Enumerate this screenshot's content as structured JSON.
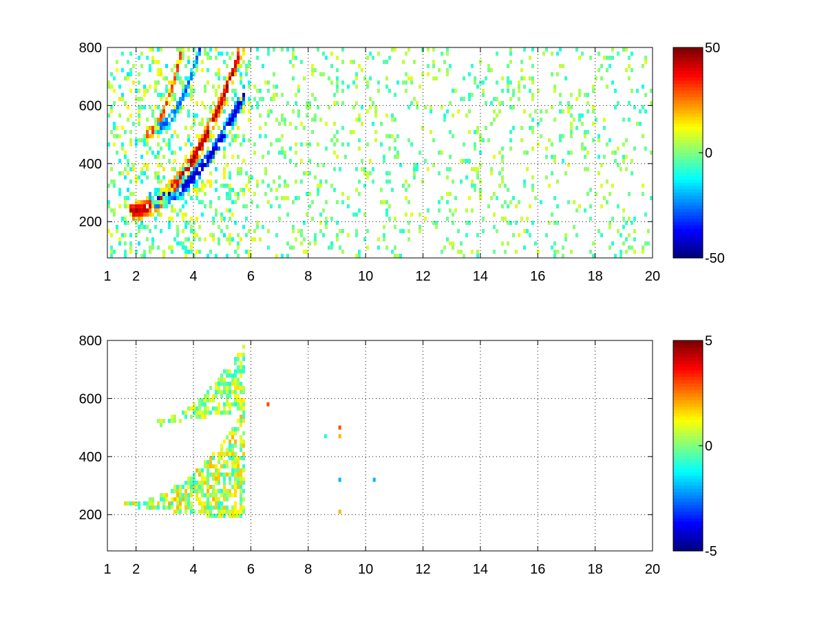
{
  "figure": {
    "background": "#ffffff"
  },
  "colormap": "jet",
  "chart_data": [
    {
      "id": "top",
      "type": "heatmap",
      "title": "",
      "xlabel": "",
      "ylabel": "",
      "xlim": [
        1,
        20
      ],
      "ylim": [
        75,
        800
      ],
      "xticks": [
        1,
        2,
        4,
        6,
        8,
        10,
        12,
        14,
        16,
        18,
        20
      ],
      "xtick_labels": [
        "1",
        "2",
        "4",
        "6",
        "8",
        "10",
        "12",
        "14",
        "16",
        "18",
        "20"
      ],
      "yticks": [
        200,
        400,
        600,
        800
      ],
      "ytick_labels": [
        "200",
        "400",
        "600",
        "800"
      ],
      "grid": true,
      "colorbar": {
        "min": -50,
        "max": 50,
        "ticks": [
          -50,
          0,
          50
        ],
        "tick_labels": [
          "-50",
          "0",
          "50"
        ]
      },
      "features": [
        {
          "kind": "band",
          "x_range": [
            1.8,
            5.8
          ],
          "y_start": 235,
          "curvature": 600,
          "width": 22,
          "value": 45
        },
        {
          "kind": "band",
          "x_range": [
            2.4,
            5.8
          ],
          "y_start": 270,
          "curvature": 380,
          "width": 20,
          "value": -45
        },
        {
          "kind": "band",
          "x_range": [
            2.3,
            4.3
          ],
          "y_start": 500,
          "curvature": 700,
          "width": 14,
          "value": 35
        },
        {
          "kind": "band",
          "x_range": [
            2.6,
            4.8
          ],
          "y_start": 520,
          "curvature": 500,
          "width": 14,
          "value": -30
        },
        {
          "kind": "scatter_noise",
          "x_range": [
            6,
            20
          ],
          "value_range": [
            -10,
            10
          ],
          "density": 0.12
        }
      ]
    },
    {
      "id": "bottom",
      "type": "heatmap",
      "title": "",
      "xlabel": "",
      "ylabel": "",
      "xlim": [
        1,
        20
      ],
      "ylim": [
        75,
        800
      ],
      "xticks": [
        1,
        2,
        4,
        6,
        8,
        10,
        12,
        14,
        16,
        18,
        20
      ],
      "xtick_labels": [
        "1",
        "2",
        "4",
        "6",
        "8",
        "10",
        "12",
        "14",
        "16",
        "18",
        "20"
      ],
      "yticks": [
        200,
        400,
        600,
        800
      ],
      "ytick_labels": [
        "200",
        "400",
        "600",
        "800"
      ],
      "grid": true,
      "colorbar": {
        "min": -5,
        "max": 5,
        "ticks": [
          -5,
          0,
          5
        ],
        "tick_labels": [
          "-5",
          "0",
          "5"
        ]
      },
      "features": [
        {
          "kind": "region",
          "x_range": [
            1.6,
            5.8
          ],
          "y_lower": [
            230,
            180
          ],
          "y_upper": [
            240,
            560
          ],
          "value_range": [
            -1,
            2
          ]
        },
        {
          "kind": "region",
          "x_range": [
            2.4,
            5.8
          ],
          "y_lower": [
            500,
            560
          ],
          "y_upper": [
            520,
            800
          ],
          "value_range": [
            -1,
            1.5
          ]
        },
        {
          "kind": "points",
          "points": [
            [
              9.1,
              500,
              3
            ],
            [
              9.1,
              470,
              2
            ],
            [
              8.6,
              470,
              -1
            ],
            [
              9.1,
              320,
              -2
            ],
            [
              10.3,
              320,
              -2
            ],
            [
              9.1,
              210,
              2
            ],
            [
              6.6,
              580,
              3
            ]
          ]
        }
      ]
    }
  ]
}
